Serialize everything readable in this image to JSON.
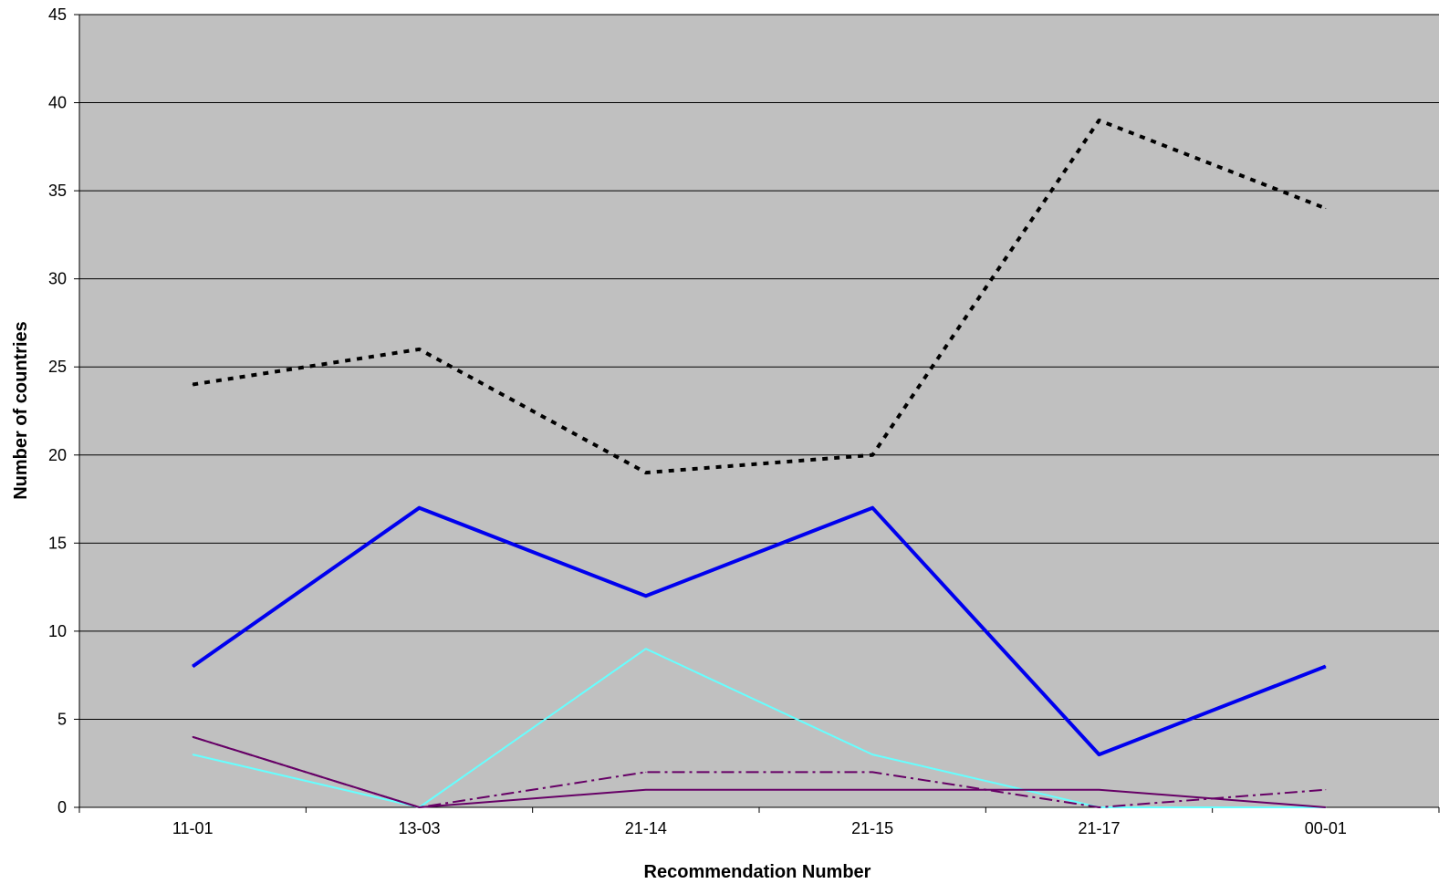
{
  "chart_data": {
    "type": "line",
    "title": "",
    "xlabel": "Recommendation Number",
    "ylabel": "Number of countries",
    "categories": [
      "11-01",
      "13-03",
      "21-14",
      "21-15",
      "21-17",
      "00-01"
    ],
    "ylim": [
      0,
      45
    ],
    "yticks": [
      0,
      5,
      10,
      15,
      20,
      25,
      30,
      35,
      40,
      45
    ],
    "grid": true,
    "legend": "none",
    "plot_background": "#c0c0c0",
    "series": [
      {
        "values": [
          24,
          26,
          19,
          20,
          39,
          34
        ],
        "color": "#000000",
        "style": "dotted",
        "width": 4
      },
      {
        "values": [
          8,
          17,
          12,
          17,
          3,
          8
        ],
        "color": "#0000ee",
        "style": "solid",
        "width": 4
      },
      {
        "values": [
          3,
          0,
          9,
          3,
          0,
          0
        ],
        "color": "#66ffff",
        "style": "solid",
        "width": 2
      },
      {
        "values": [
          4,
          0,
          2,
          2,
          0,
          1
        ],
        "color": "#660066",
        "style": "dash-dot",
        "width": 2
      },
      {
        "values": [
          4,
          0,
          1,
          1,
          1,
          0
        ],
        "color": "#660066",
        "style": "solid",
        "width": 2
      }
    ]
  }
}
